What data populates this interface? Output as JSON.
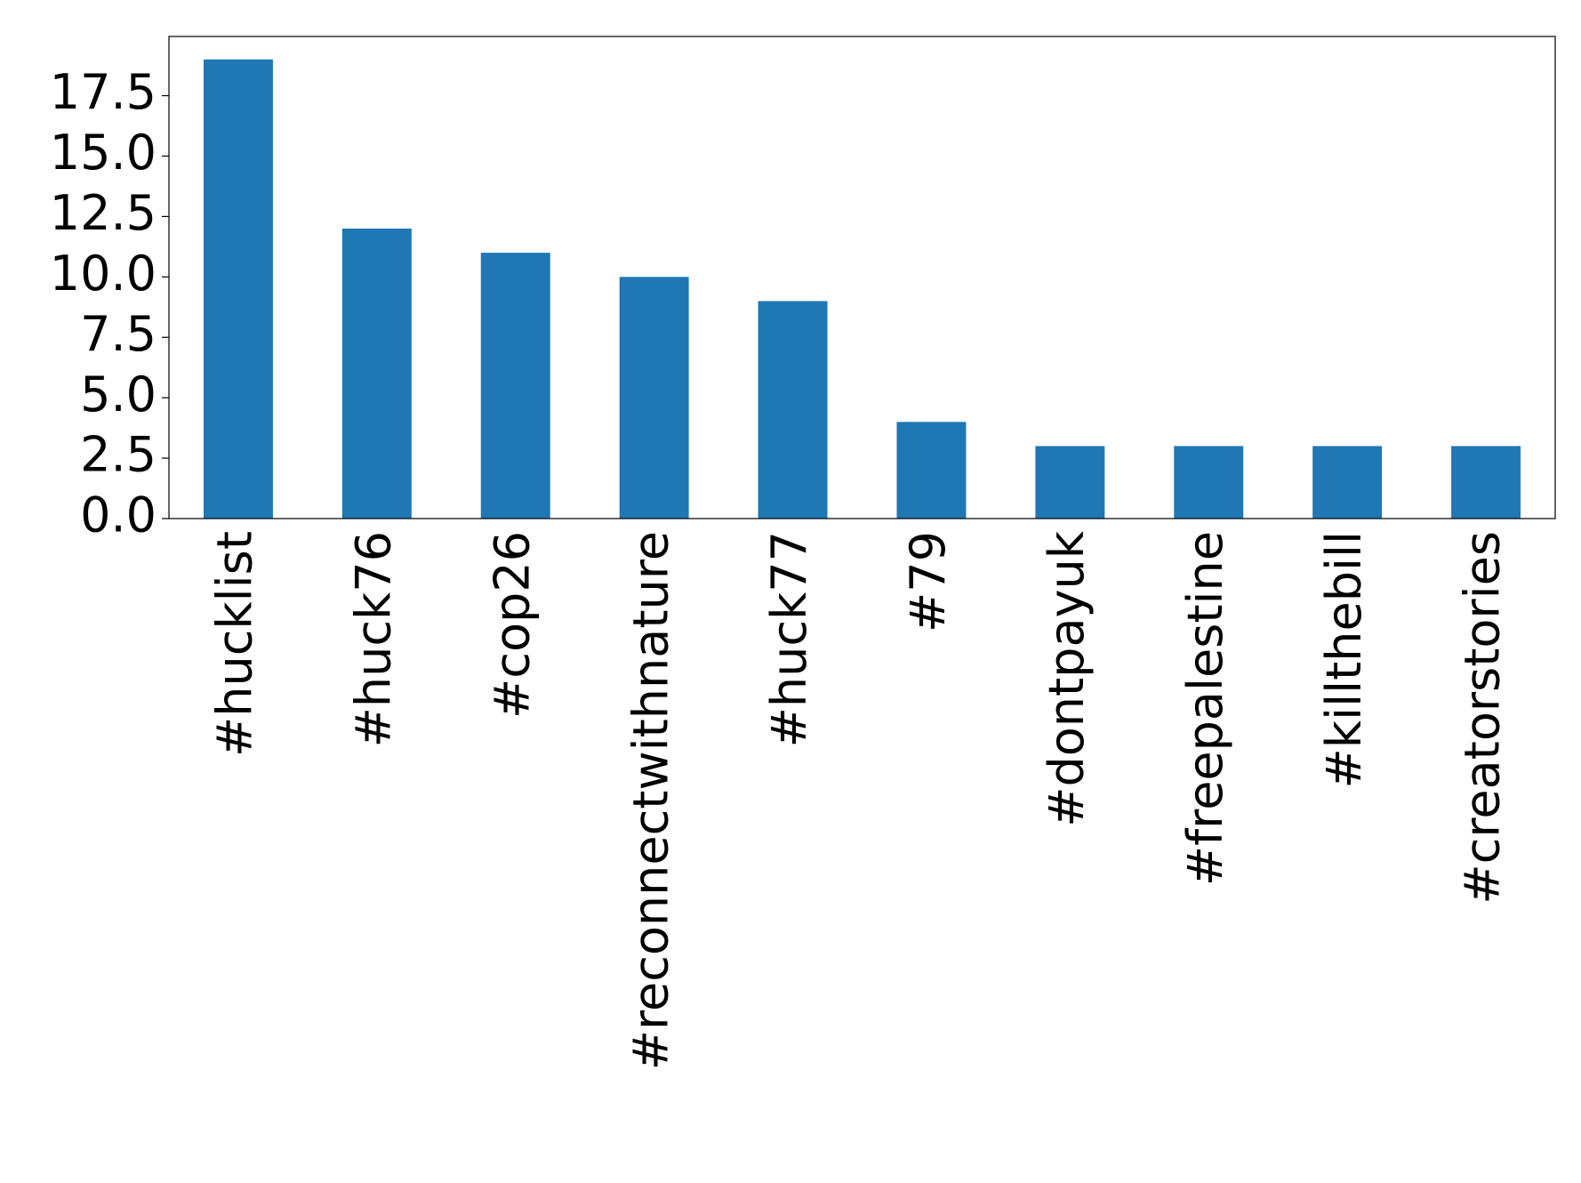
{
  "chart_data": {
    "type": "bar",
    "categories": [
      "#hucklist",
      "#huck76",
      "#cop26",
      "#reconnectwithnature",
      "#huck77",
      "#79",
      "#dontpayuk",
      "#freepalestine",
      "#killthebill",
      "#creatorstories"
    ],
    "values": [
      19,
      12,
      11,
      10,
      9,
      4,
      3,
      3,
      3,
      3
    ],
    "color": "#1f77b4",
    "ylim": [
      0,
      19.95
    ],
    "yticks": [
      {
        "value": 0,
        "label": "0.0"
      },
      2.5,
      {
        "value": 5,
        "label": "5.0"
      },
      7.5,
      {
        "value": 10,
        "label": "10.0"
      },
      12.5,
      {
        "value": 15,
        "label": "15.0"
      },
      17.5
    ],
    "grid": false
  }
}
